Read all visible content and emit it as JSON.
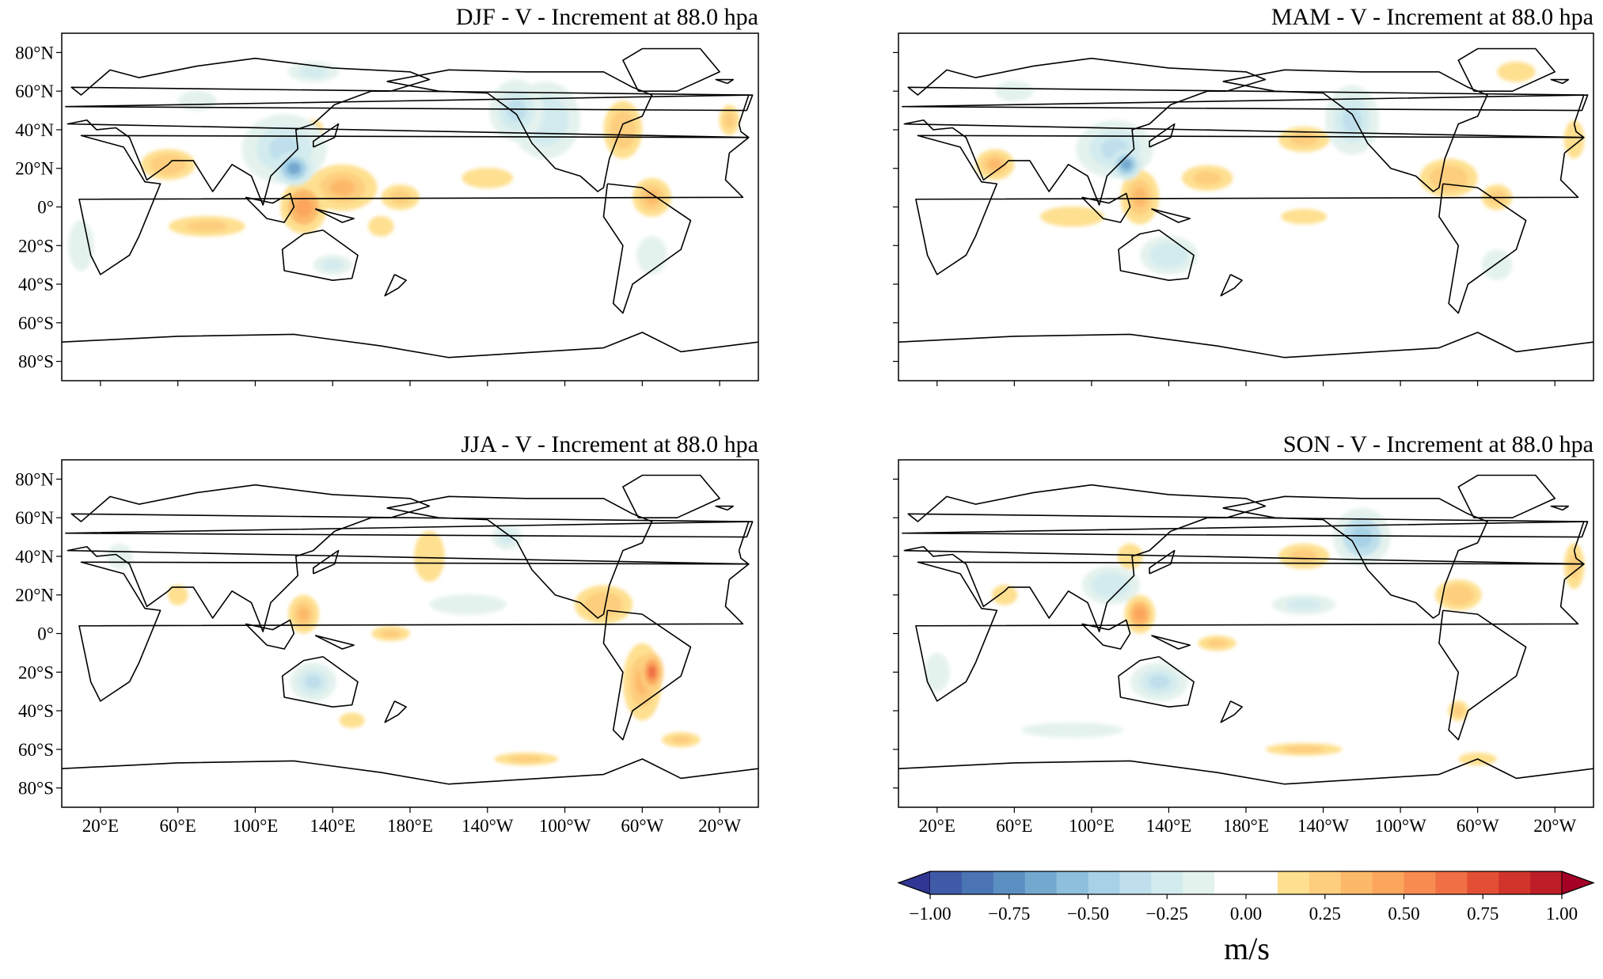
{
  "figure": {
    "panels": [
      {
        "title": "DJF - V - Increment at 88.0 hpa",
        "show_ylabels": true,
        "show_xlabels": false,
        "blobs": [
          [
            -0.55,
            120,
            20,
            10,
            9
          ],
          [
            -0.3,
            115,
            30,
            22,
            18
          ],
          [
            -0.35,
            -125,
            50,
            14,
            16
          ],
          [
            -0.25,
            -110,
            45,
            18,
            20
          ],
          [
            0.4,
            125,
            0,
            12,
            14
          ],
          [
            0.3,
            145,
            10,
            18,
            12
          ],
          [
            0.25,
            55,
            22,
            14,
            8
          ],
          [
            0.3,
            -55,
            5,
            10,
            10
          ],
          [
            0.25,
            -70,
            40,
            10,
            15
          ],
          [
            0.2,
            75,
            -10,
            30,
            8
          ],
          [
            0.2,
            175,
            5,
            15,
            10
          ],
          [
            0.2,
            -15,
            45,
            8,
            12
          ],
          [
            0.15,
            -140,
            15,
            20,
            8
          ],
          [
            -0.2,
            140,
            -30,
            15,
            8
          ],
          [
            -0.15,
            -55,
            -25,
            12,
            15
          ],
          [
            -0.2,
            130,
            70,
            20,
            8
          ],
          [
            0.15,
            165,
            -10,
            10,
            8
          ],
          [
            0.2,
            130,
            40,
            8,
            8
          ],
          [
            -0.15,
            10,
            -20,
            10,
            20
          ],
          [
            -0.15,
            70,
            55,
            15,
            8
          ]
        ]
      },
      {
        "title": "MAM - V - Increment at 88.0 hpa",
        "show_ylabels": false,
        "show_xlabels": false,
        "blobs": [
          [
            -0.55,
            118,
            22,
            8,
            8
          ],
          [
            -0.3,
            112,
            30,
            20,
            15
          ],
          [
            -0.3,
            -125,
            45,
            14,
            18
          ],
          [
            0.35,
            125,
            5,
            10,
            14
          ],
          [
            0.3,
            50,
            22,
            10,
            8
          ],
          [
            0.25,
            -75,
            15,
            15,
            10
          ],
          [
            0.2,
            -50,
            5,
            12,
            10
          ],
          [
            0.2,
            160,
            15,
            20,
            10
          ],
          [
            0.2,
            -150,
            35,
            20,
            10
          ],
          [
            -0.25,
            140,
            -25,
            15,
            10
          ],
          [
            0.15,
            -10,
            35,
            8,
            15
          ],
          [
            0.15,
            90,
            -5,
            25,
            8
          ],
          [
            -0.15,
            -50,
            -30,
            12,
            12
          ],
          [
            0.15,
            -150,
            -5,
            18,
            6
          ],
          [
            -0.15,
            60,
            60,
            15,
            8
          ],
          [
            0.15,
            -40,
            70,
            15,
            8
          ]
        ]
      },
      {
        "title": "JJA - V - Increment at 88.0 hpa",
        "show_ylabels": true,
        "show_xlabels": true,
        "blobs": [
          [
            0.55,
            -55,
            -20,
            6,
            10
          ],
          [
            0.35,
            -60,
            -25,
            10,
            20
          ],
          [
            -0.35,
            130,
            -25,
            12,
            10
          ],
          [
            0.3,
            125,
            10,
            8,
            10
          ],
          [
            0.25,
            -80,
            15,
            15,
            10
          ],
          [
            0.2,
            -40,
            -55,
            15,
            6
          ],
          [
            0.2,
            170,
            0,
            15,
            6
          ],
          [
            -0.2,
            -130,
            50,
            12,
            10
          ],
          [
            0.2,
            -120,
            -65,
            25,
            5
          ],
          [
            0.15,
            -170,
            40,
            12,
            20
          ],
          [
            -0.15,
            30,
            40,
            10,
            10
          ],
          [
            -0.15,
            -150,
            15,
            30,
            8
          ],
          [
            0.15,
            150,
            -45,
            10,
            6
          ],
          [
            0.15,
            60,
            20,
            8,
            8
          ]
        ]
      },
      {
        "title": "SON - V - Increment at 88.0 hpa",
        "show_ylabels": false,
        "show_xlabels": true,
        "blobs": [
          [
            -0.4,
            -120,
            50,
            15,
            15
          ],
          [
            0.4,
            125,
            10,
            8,
            10
          ],
          [
            -0.3,
            135,
            -25,
            15,
            10
          ],
          [
            -0.25,
            110,
            25,
            15,
            10
          ],
          [
            0.2,
            -150,
            40,
            20,
            10
          ],
          [
            0.25,
            -70,
            20,
            12,
            8
          ],
          [
            0.2,
            -10,
            35,
            8,
            18
          ],
          [
            0.2,
            -150,
            -60,
            30,
            5
          ],
          [
            0.2,
            165,
            -5,
            15,
            6
          ],
          [
            -0.2,
            -150,
            15,
            25,
            8
          ],
          [
            0.2,
            -70,
            -40,
            8,
            8
          ],
          [
            0.15,
            55,
            20,
            10,
            8
          ],
          [
            -0.15,
            20,
            -20,
            10,
            15
          ],
          [
            -0.15,
            90,
            -50,
            40,
            6
          ],
          [
            0.15,
            -60,
            -65,
            15,
            5
          ],
          [
            0.15,
            120,
            40,
            10,
            10
          ]
        ]
      }
    ],
    "yticks": [
      "80°N",
      "60°N",
      "40°N",
      "20°N",
      "0°",
      "20°S",
      "40°S",
      "60°S",
      "80°S"
    ],
    "ytick_values": [
      80,
      60,
      40,
      20,
      0,
      -20,
      -40,
      -60,
      -80
    ],
    "xticks": [
      "20°E",
      "60°E",
      "100°E",
      "140°E",
      "180°E",
      "140°W",
      "100°W",
      "60°W",
      "20°W"
    ],
    "xtick_values": [
      20,
      60,
      100,
      140,
      180,
      220,
      260,
      300,
      340
    ],
    "lon_range": [
      0,
      360
    ],
    "lat_range": [
      -90,
      90
    ],
    "colorbar": {
      "ticks": [
        "−1.00",
        "−0.75",
        "−0.50",
        "−0.25",
        "0.00",
        "0.25",
        "0.50",
        "0.75",
        "1.00"
      ],
      "unit": "m/s",
      "min": -1.0,
      "max": 1.0,
      "colors": [
        "#313695",
        "#3f5ba8",
        "#4a74b4",
        "#5b8fc2",
        "#74a9cf",
        "#8ebfdb",
        "#a6d1e6",
        "#bedfeb",
        "#d3ebee",
        "#e4f2ee",
        "#ffffff",
        "#ffffff",
        "#fee090",
        "#fdce7e",
        "#fdb96a",
        "#fca55d",
        "#f88b50",
        "#f06f44",
        "#e34f34",
        "#d1342b",
        "#bc1d27",
        "#a50026"
      ],
      "extend": "both"
    }
  },
  "coastlines": [
    [
      [
        -15,
        28
      ],
      [
        -5,
        36
      ],
      [
        10,
        37
      ],
      [
        32,
        31
      ],
      [
        43,
        13
      ],
      [
        51,
        12
      ],
      [
        40,
        -15
      ],
      [
        35,
        -25
      ],
      [
        20,
        -35
      ],
      [
        15,
        -25
      ],
      [
        9,
        4
      ],
      [
        -8,
        5
      ],
      [
        -17,
        14
      ],
      [
        -15,
        28
      ]
    ],
    [
      [
        -10,
        43
      ],
      [
        -9,
        39
      ],
      [
        -5,
        36
      ],
      [
        3,
        43
      ],
      [
        13,
        45
      ],
      [
        18,
        40
      ],
      [
        28,
        41
      ],
      [
        35,
        36
      ],
      [
        44,
        14
      ],
      [
        55,
        22
      ],
      [
        57,
        24
      ],
      [
        68,
        24
      ],
      [
        78,
        8
      ],
      [
        88,
        22
      ],
      [
        98,
        16
      ],
      [
        104,
        1
      ],
      [
        108,
        16
      ],
      [
        122,
        30
      ],
      [
        121,
        40
      ],
      [
        130,
        43
      ],
      [
        141,
        53
      ],
      [
        160,
        60
      ],
      [
        170,
        60
      ],
      [
        190,
        66
      ],
      [
        180,
        70
      ],
      [
        140,
        72
      ],
      [
        100,
        77
      ],
      [
        70,
        73
      ],
      [
        40,
        67
      ],
      [
        25,
        71
      ],
      [
        10,
        58
      ],
      [
        5,
        62
      ],
      [
        -5,
        58
      ],
      [
        -10,
        43
      ]
    ],
    [
      [
        135,
        -12
      ],
      [
        153,
        -25
      ],
      [
        150,
        -37
      ],
      [
        140,
        -38
      ],
      [
        115,
        -33
      ],
      [
        114,
        -22
      ],
      [
        125,
        -14
      ],
      [
        135,
        -12
      ]
    ],
    [
      [
        168,
        65
      ],
      [
        195,
        60
      ],
      [
        220,
        59
      ],
      [
        235,
        48
      ],
      [
        243,
        33
      ],
      [
        255,
        20
      ],
      [
        268,
        16
      ],
      [
        277,
        8
      ],
      [
        280,
        10
      ],
      [
        283,
        25
      ],
      [
        290,
        43
      ],
      [
        300,
        47
      ],
      [
        305,
        58
      ],
      [
        295,
        62
      ],
      [
        280,
        70
      ],
      [
        240,
        70
      ],
      [
        200,
        71
      ],
      [
        168,
        65
      ]
    ],
    [
      [
        282,
        12
      ],
      [
        300,
        10
      ],
      [
        325,
        -7
      ],
      [
        320,
        -22
      ],
      [
        295,
        -40
      ],
      [
        290,
        -55
      ],
      [
        285,
        -50
      ],
      [
        290,
        -20
      ],
      [
        280,
        -5
      ],
      [
        282,
        12
      ]
    ],
    [
      [
        0,
        -70
      ],
      [
        60,
        -67
      ],
      [
        120,
        -66
      ],
      [
        165,
        -72
      ],
      [
        200,
        -78
      ],
      [
        280,
        -73
      ],
      [
        300,
        -65
      ],
      [
        320,
        -75
      ],
      [
        360,
        -70
      ]
    ],
    [
      [
        298,
        60
      ],
      [
        318,
        60
      ],
      [
        340,
        70
      ],
      [
        330,
        82
      ],
      [
        300,
        82
      ],
      [
        290,
        76
      ],
      [
        298,
        60
      ]
    ],
    [
      [
        130,
        31
      ],
      [
        141,
        36
      ],
      [
        143,
        43
      ],
      [
        140,
        41
      ],
      [
        130,
        34
      ],
      [
        130,
        31
      ]
    ],
    [
      [
        95,
        5
      ],
      [
        106,
        -6
      ],
      [
        115,
        -8
      ],
      [
        120,
        0
      ],
      [
        118,
        7
      ],
      [
        109,
        2
      ],
      [
        95,
        5
      ]
    ],
    [
      [
        131,
        -1
      ],
      [
        151,
        -6
      ],
      [
        145,
        -8
      ],
      [
        131,
        -1
      ]
    ],
    [
      [
        172,
        -35
      ],
      [
        178,
        -38
      ],
      [
        174,
        -42
      ],
      [
        167,
        -46
      ],
      [
        172,
        -35
      ]
    ],
    [
      [
        -6,
        50
      ],
      [
        2,
        52
      ],
      [
        -3,
        58
      ],
      [
        -6,
        50
      ]
    ],
    [
      [
        344,
        64
      ],
      [
        347,
        66
      ],
      [
        338,
        66
      ],
      [
        344,
        64
      ]
    ]
  ]
}
